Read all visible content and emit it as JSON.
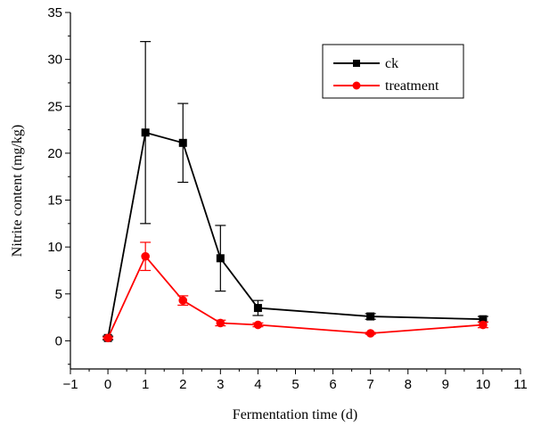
{
  "chart_data": {
    "type": "line",
    "xlabel": "Fermentation time (d)",
    "ylabel": "Nitrite content (mg/kg)",
    "xlim": [
      -1,
      11
    ],
    "ylim": [
      -3,
      35
    ],
    "x_ticks": [
      -1,
      0,
      1,
      2,
      3,
      4,
      5,
      6,
      7,
      8,
      9,
      10,
      11
    ],
    "y_ticks": [
      0,
      5,
      10,
      15,
      20,
      25,
      30,
      35
    ],
    "x_tick_labels": [
      "−1",
      "0",
      "1",
      "2",
      "3",
      "4",
      "5",
      "6",
      "7",
      "8",
      "9",
      "10",
      "11"
    ],
    "y_tick_labels": [
      "0",
      "5",
      "10",
      "15",
      "20",
      "25",
      "30",
      "35"
    ],
    "legend_position": "top-right",
    "series": [
      {
        "name": "ck",
        "color": "#000000",
        "marker": "square",
        "x": [
          0,
          1,
          2,
          3,
          4,
          7,
          10
        ],
        "y": [
          0.3,
          22.2,
          21.1,
          8.8,
          3.5,
          2.6,
          2.3
        ],
        "err": [
          0.2,
          9.7,
          4.2,
          3.5,
          0.8,
          0.3,
          0.3
        ]
      },
      {
        "name": "treatment",
        "color": "#ff0000",
        "marker": "circle",
        "x": [
          0,
          1,
          2,
          3,
          4,
          7,
          10
        ],
        "y": [
          0.3,
          9.0,
          4.3,
          1.9,
          1.7,
          0.8,
          1.7
        ],
        "err": [
          0.1,
          1.5,
          0.5,
          0.3,
          0.2,
          0.1,
          0.3
        ]
      }
    ]
  }
}
